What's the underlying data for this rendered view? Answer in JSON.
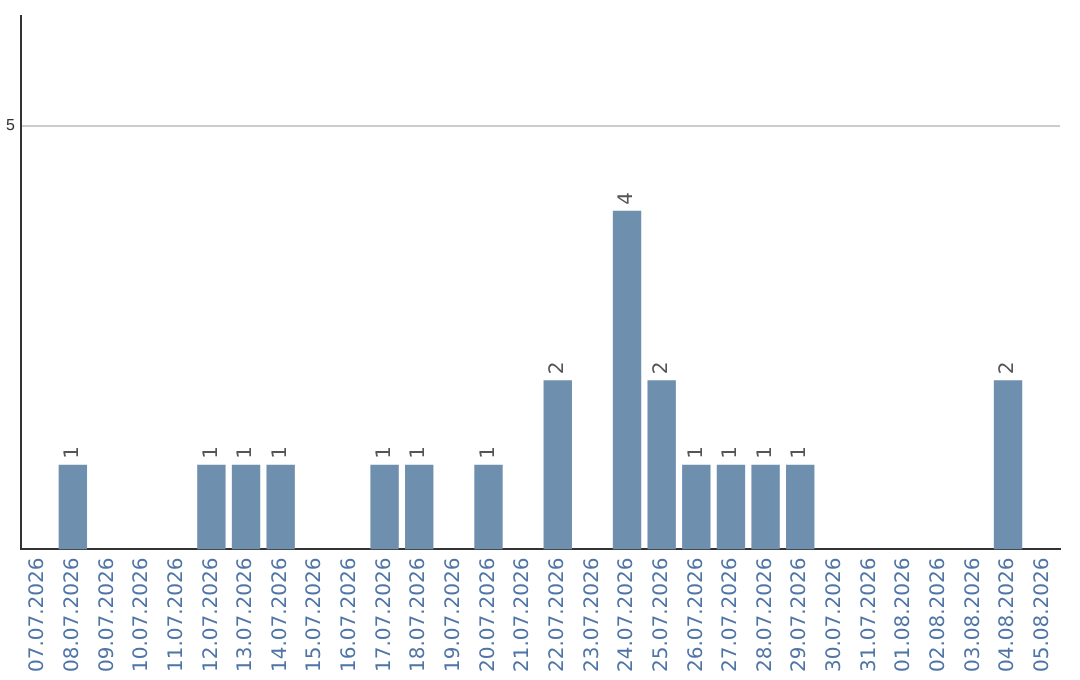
{
  "chart_data": {
    "type": "bar",
    "categories": [
      "07.07.2026",
      "08.07.2026",
      "09.07.2026",
      "10.07.2026",
      "11.07.2026",
      "12.07.2026",
      "13.07.2026",
      "14.07.2026",
      "15.07.2026",
      "16.07.2026",
      "17.07.2026",
      "18.07.2026",
      "19.07.2026",
      "20.07.2026",
      "21.07.2026",
      "22.07.2026",
      "23.07.2026",
      "24.07.2026",
      "25.07.2026",
      "26.07.2026",
      "27.07.2026",
      "28.07.2026",
      "29.07.2026",
      "30.07.2026",
      "31.07.2026",
      "01.08.2026",
      "02.08.2026",
      "03.08.2026",
      "04.08.2026",
      "05.08.2026"
    ],
    "values": [
      0,
      1,
      0,
      0,
      0,
      1,
      1,
      1,
      0,
      0,
      1,
      1,
      0,
      1,
      0,
      2,
      0,
      4,
      2,
      1,
      1,
      1,
      1,
      0,
      0,
      0,
      0,
      0,
      2,
      0
    ],
    "value_labels": [
      null,
      "1",
      null,
      null,
      null,
      "1",
      "1",
      "1",
      null,
      null,
      "1",
      "1",
      null,
      "1",
      null,
      "2",
      null,
      "4",
      "2",
      "1",
      "1",
      "1",
      "1",
      null,
      null,
      null,
      null,
      null,
      "2",
      null
    ],
    "color": "#6f8fae",
    "ylim": [
      0,
      6.3
    ],
    "yticks": [
      5
    ],
    "grid": "y",
    "legend": false
  }
}
